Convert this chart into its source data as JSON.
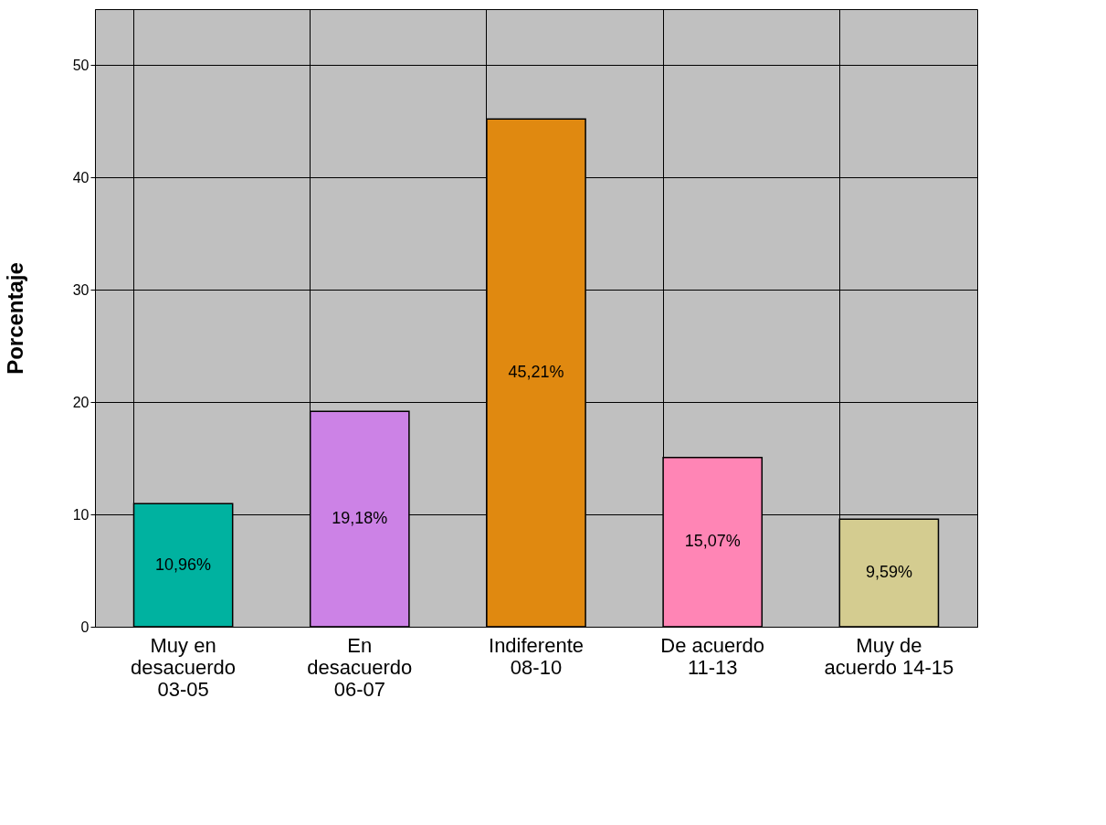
{
  "chart_data": {
    "type": "bar",
    "ylabel": "Porcentaje",
    "categories": [
      "Muy en\ndesacuerdo\n03-05",
      "En\ndesacuerdo\n06-07",
      "Indiferente\n08-10",
      "De acuerdo\n11-13",
      "Muy de\nacuerdo 14-15"
    ],
    "values": [
      10.96,
      19.18,
      45.21,
      15.07,
      9.59
    ],
    "value_labels": [
      "10,96%",
      "19,18%",
      "45,21%",
      "15,07%",
      "9,59%"
    ],
    "colors": [
      "#00b2a0",
      "#cc82e6",
      "#e08910",
      "#ff85b5",
      "#d4cc90"
    ],
    "ylim": [
      0,
      55
    ],
    "yticks": [
      0,
      10,
      20,
      30,
      40,
      50
    ],
    "grid": true
  }
}
